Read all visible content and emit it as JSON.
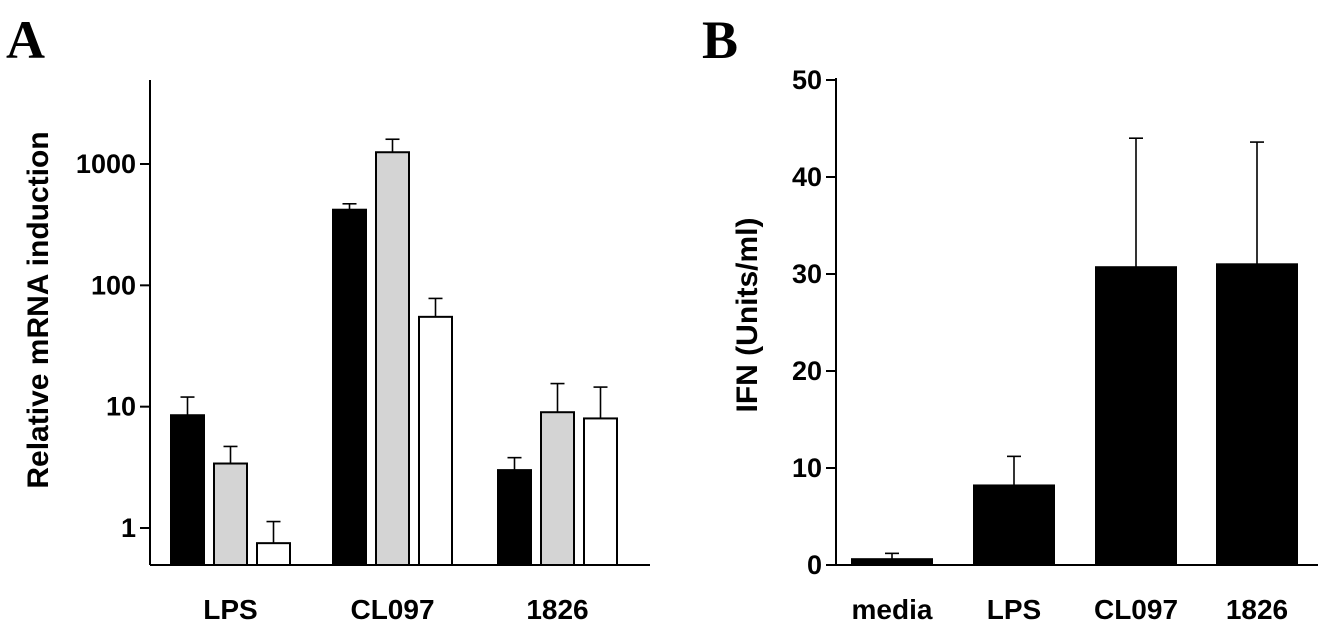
{
  "chart_data": [
    {
      "panel": "A",
      "type": "bar",
      "ylabel": "Relative mRNA induction",
      "yscale": "log",
      "ylim": [
        0.5,
        5000
      ],
      "yticks": [
        1,
        10,
        100,
        1000
      ],
      "ytick_labels": [
        "1",
        "10",
        "100",
        "1000"
      ],
      "categories": [
        "LPS",
        "CL097",
        "1826"
      ],
      "series": [
        {
          "fill": "#000000",
          "values": [
            8.5,
            420,
            3.0
          ],
          "errors": [
            3.5,
            50,
            0.8
          ]
        },
        {
          "fill": "#d4d4d4",
          "values": [
            3.4,
            1250,
            9.0
          ],
          "errors": [
            1.3,
            350,
            6.5
          ]
        },
        {
          "fill": "#ffffff",
          "values": [
            0.75,
            55,
            8.0
          ],
          "errors": [
            0.38,
            23,
            6.5
          ]
        }
      ]
    },
    {
      "panel": "B",
      "type": "bar",
      "ylabel": "IFN (Units/ml)",
      "ylim": [
        0,
        50
      ],
      "yticks": [
        0,
        10,
        20,
        30,
        40,
        50
      ],
      "ytick_labels": [
        "0",
        "10",
        "20",
        "30",
        "40",
        "50"
      ],
      "categories": [
        "media",
        "LPS",
        "CL097",
        "1826"
      ],
      "series": [
        {
          "fill": "#000000",
          "values": [
            0.6,
            8.2,
            30.7,
            31.0
          ],
          "errors": [
            0.6,
            3.0,
            13.3,
            12.6
          ]
        }
      ]
    }
  ]
}
